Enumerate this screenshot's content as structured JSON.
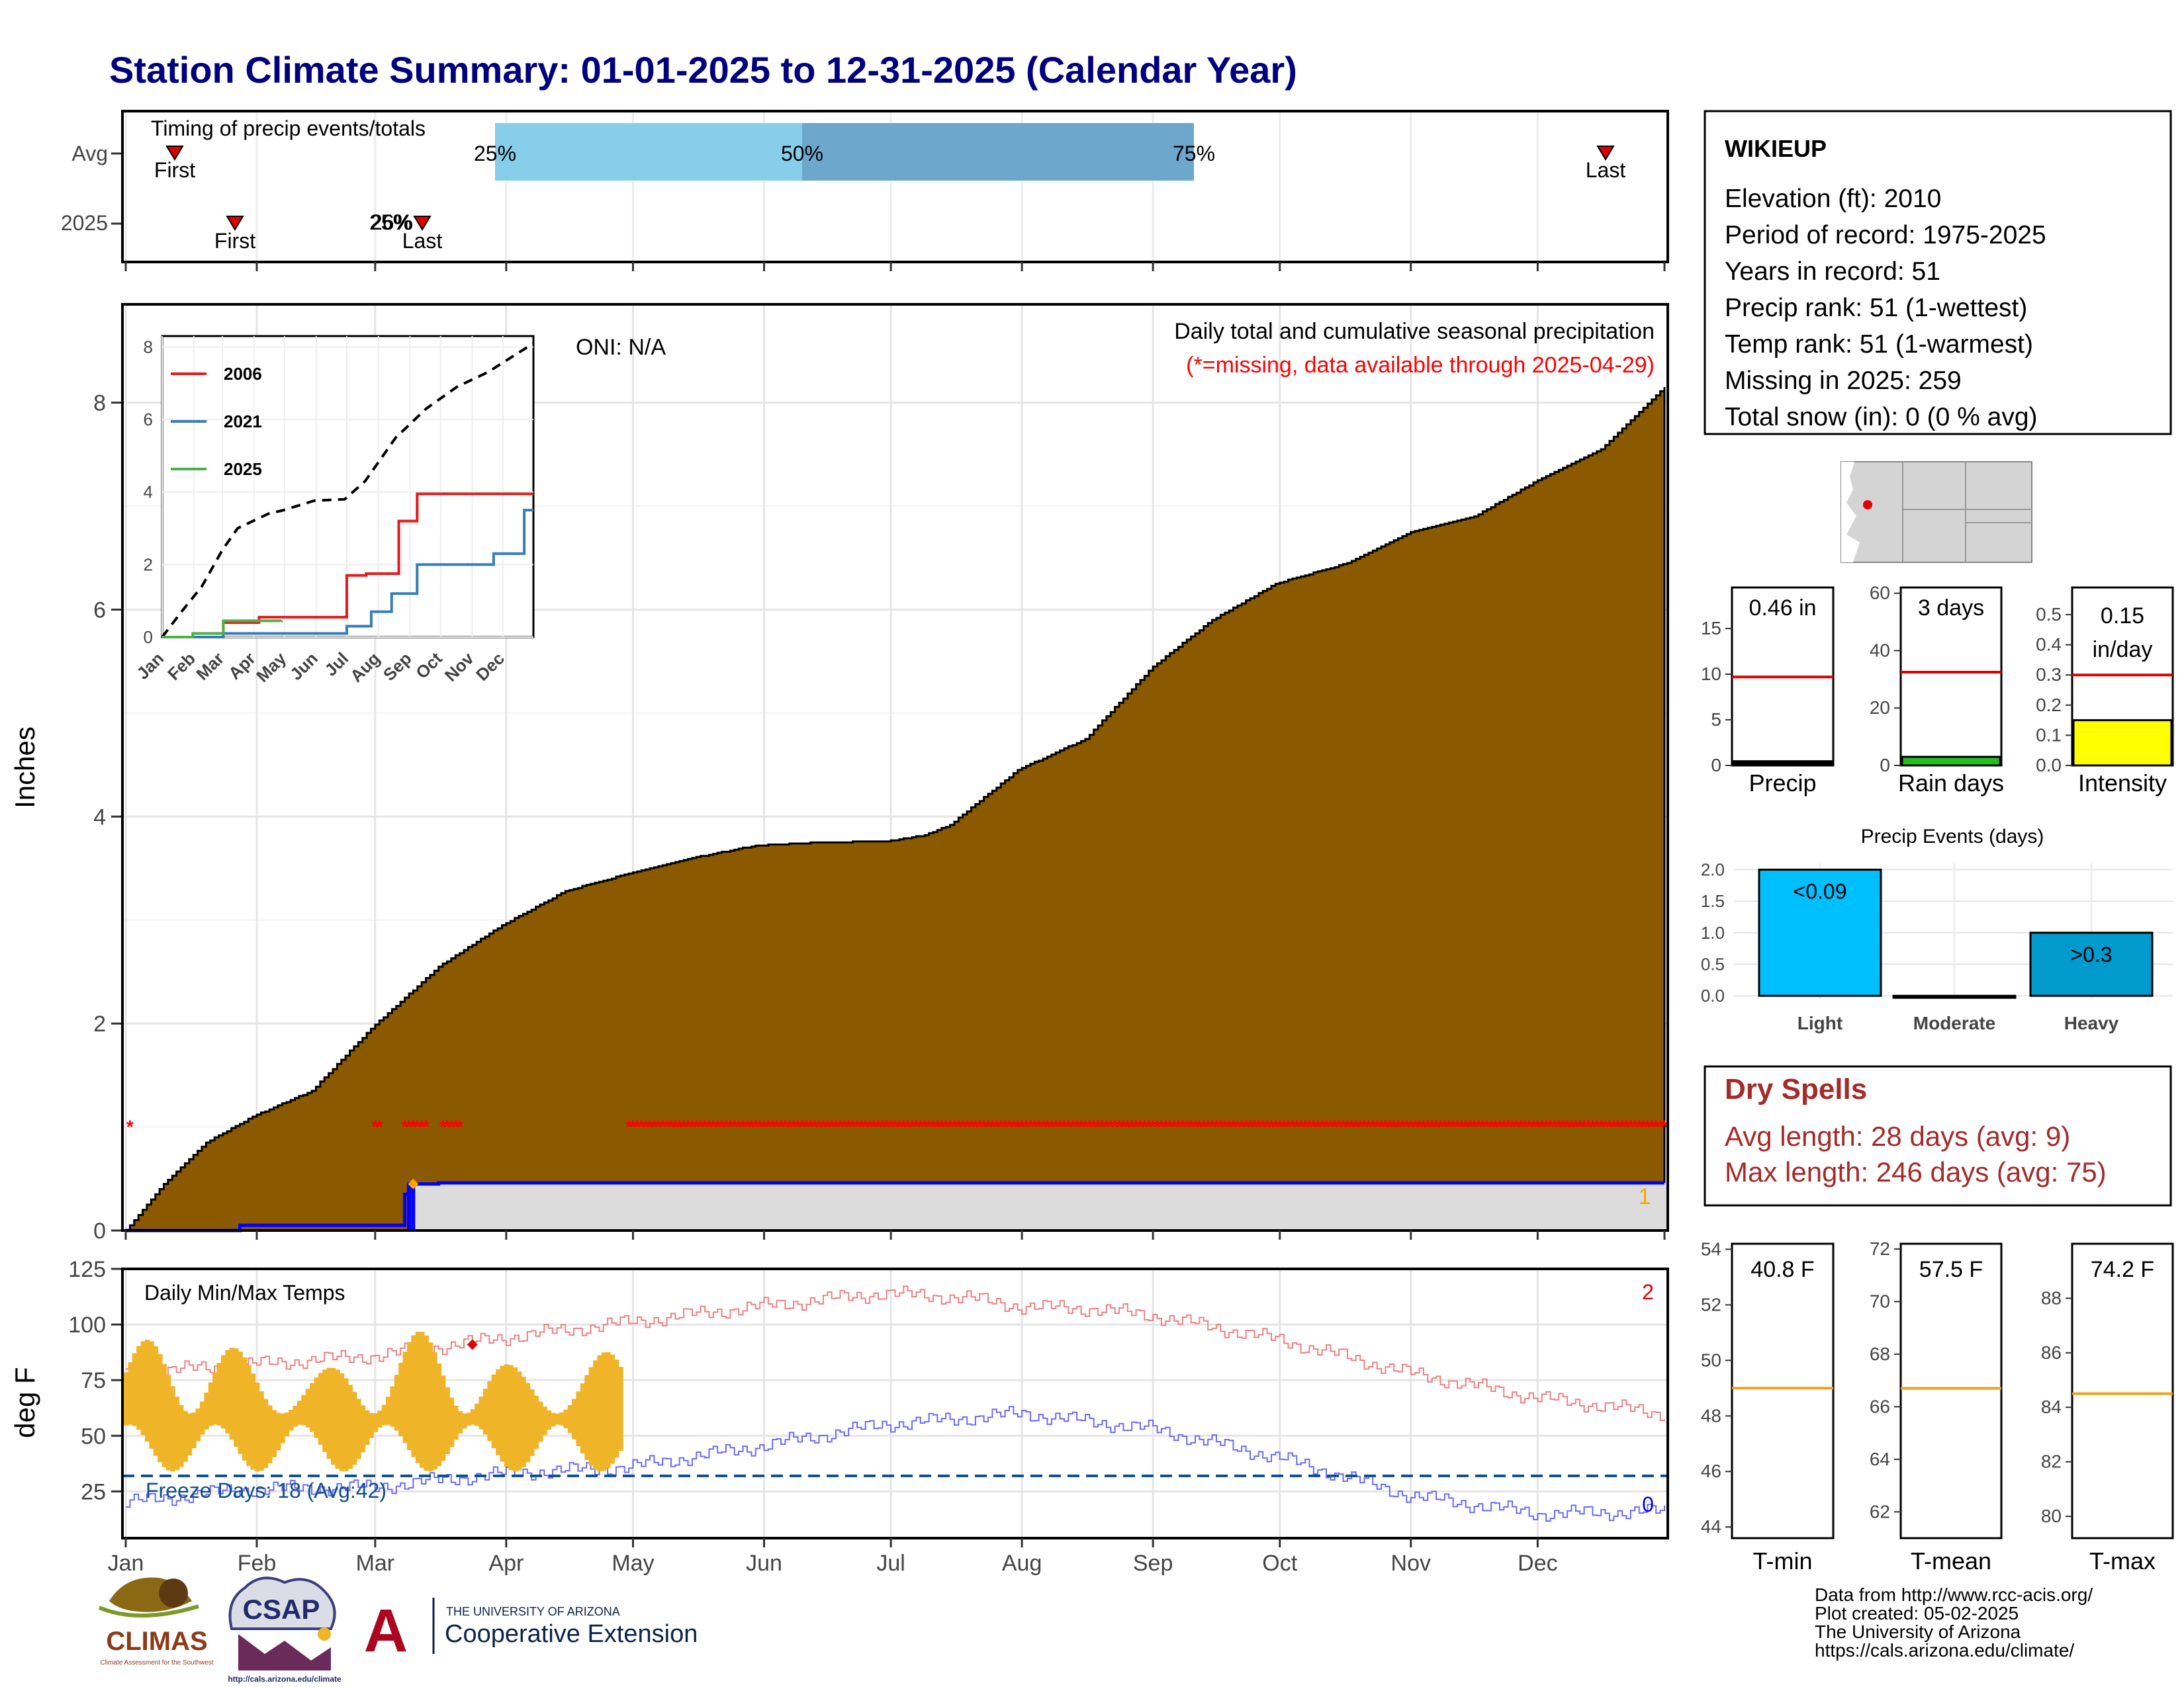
{
  "title": "Station Climate Summary: 01-01-2025 to 12-31-2025 (Calendar Year)",
  "colors": {
    "title": "#00007f",
    "cumulative_fill": "#8b5a00",
    "avg_light": "#87ceeb",
    "avg_dark": "#6ea7cc",
    "missing": "#ff0000",
    "current_line": "#0000ff",
    "temp_bar": "#f0b429",
    "red_line": "#e41a1c",
    "blue_line": "#377eb8",
    "green_line": "#4daf4a",
    "spell_red": "#a52a2a",
    "dark_blue": "#104e8b"
  },
  "timing": {
    "label": "Timing of precip events/totals",
    "row_avg": "Avg",
    "row_year": "2025",
    "first": "First",
    "last": "Last",
    "p25": "25%",
    "p50": "50%",
    "p75": "75%",
    "overlap_2025": "26%"
  },
  "main": {
    "ylabel": "Inches",
    "oni": "ONI: N/A",
    "caption": "Daily total and cumulative seasonal precipitation",
    "missing_note": "(*=missing, data available through 2025-04-29)",
    "count_label": "1"
  },
  "temps": {
    "ylabel": "deg F",
    "title": "Daily Min/Max Temps",
    "freeze": "Freeze Days: 18 (Avg:42)",
    "count_top": "2",
    "count_bottom": "0"
  },
  "station": {
    "name": "WIKIEUP",
    "lines": [
      "Elevation (ft): 2010",
      "Period of record: 1975-2025",
      "Years in record: 51",
      "Precip rank: 51 (1-wettest)",
      "Temp rank: 51 (1-warmest)",
      "Missing in 2025: 259",
      "Total snow (in): 0 (0 % avg)"
    ]
  },
  "dry_spells": {
    "title": "Dry Spells",
    "avg": "Avg length: 28 days (avg: 9)",
    "max": "Max length: 246 days (avg: 75)"
  },
  "footer": [
    "Data from http://www.rcc-acis.org/",
    "Plot created: 05-02-2025",
    "The University of Arizona",
    "https://cals.arizona.edu/climate/"
  ],
  "logos": {
    "climas": "CLIMAS",
    "climas_sub": "Climate Assessment for the Southwest",
    "csap": "CSAP",
    "csap_url": "http://cals.arizona.edu/climate",
    "ua_letter": "A",
    "ua_top": "THE UNIVERSITY OF ARIZONA",
    "ua_bottom": "Cooperative Extension"
  },
  "chart_data": [
    {
      "id": "cumulative_precip",
      "type": "area",
      "x_months": [
        "Jan",
        "Feb",
        "Mar",
        "Apr",
        "May",
        "Jun",
        "Jul",
        "Aug",
        "Sep",
        "Oct",
        "Nov",
        "Dec"
      ],
      "ylabel": "Inches",
      "ylim": [
        0,
        8.95
      ],
      "yticks": [
        0,
        2,
        4,
        6,
        8
      ],
      "grid": true,
      "avg_cumulative": {
        "day": [
          1,
          10,
          20,
          31,
          45,
          59,
          75,
          90,
          105,
          120,
          135,
          150,
          165,
          181,
          190,
          196,
          212,
          228,
          244,
          258,
          273,
          290,
          305,
          320,
          335,
          350,
          365
        ],
        "inches": [
          0,
          0.45,
          0.85,
          1.1,
          1.35,
          1.95,
          2.55,
          2.95,
          3.28,
          3.45,
          3.6,
          3.72,
          3.75,
          3.76,
          3.82,
          3.92,
          4.45,
          4.75,
          5.45,
          5.9,
          6.25,
          6.45,
          6.75,
          6.9,
          7.25,
          7.55,
          8.15
        ]
      },
      "current_2025": {
        "day": [
          1,
          27,
          28,
          66,
          67,
          68,
          69,
          75,
          119,
          365
        ],
        "inches": [
          0,
          0,
          0.05,
          0.05,
          0.35,
          0.45,
          0.45,
          0.46,
          0.46,
          0.46
        ]
      },
      "missing_days": [
        2,
        60,
        61,
        67,
        68,
        69,
        70,
        71,
        72,
        76,
        77,
        78,
        79,
        80,
        120,
        365
      ]
    },
    {
      "id": "inset_cumulative",
      "type": "line",
      "x_months": [
        "Jan",
        "Feb",
        "Mar",
        "Apr",
        "May",
        "Jun",
        "Jul",
        "Aug",
        "Sep",
        "Oct",
        "Nov",
        "Dec"
      ],
      "ylim": [
        0,
        8.3
      ],
      "yticks": [
        0,
        2,
        4,
        6,
        8
      ],
      "legend_position": "top-left",
      "series": [
        {
          "name": "2006",
          "day": [
            1,
            60,
            61,
            95,
            96,
            181,
            182,
            200,
            201,
            232,
            233,
            250,
            251,
            301,
            302,
            365
          ],
          "inches": [
            0,
            0,
            0.4,
            0.4,
            0.55,
            0.55,
            1.7,
            1.7,
            1.75,
            1.75,
            3.2,
            3.2,
            3.95,
            3.95,
            3.95,
            3.95
          ]
        },
        {
          "name": "2021",
          "day": [
            1,
            60,
            61,
            181,
            182,
            205,
            206,
            225,
            226,
            250,
            251,
            325,
            326,
            355,
            356,
            365
          ],
          "inches": [
            0,
            0,
            0.1,
            0.1,
            0.3,
            0.3,
            0.7,
            0.7,
            1.2,
            1.2,
            2.0,
            2.0,
            2.3,
            2.3,
            3.5,
            3.5
          ]
        },
        {
          "name": "2025",
          "day": [
            1,
            30,
            31,
            60,
            61,
            118
          ],
          "inches": [
            0,
            0,
            0.1,
            0.1,
            0.45,
            0.46
          ]
        }
      ],
      "avg_dashed": {
        "day": [
          1,
          20,
          40,
          60,
          75,
          90,
          105,
          120,
          150,
          180,
          200,
          230,
          260,
          290,
          320,
          365
        ],
        "inches": [
          0,
          0.7,
          1.4,
          2.4,
          3.0,
          3.2,
          3.4,
          3.5,
          3.76,
          3.8,
          4.3,
          5.5,
          6.3,
          6.9,
          7.3,
          8.1
        ]
      }
    },
    {
      "id": "temps",
      "type": "bar",
      "ylabel": "deg F",
      "ylim": [
        4,
        125
      ],
      "yticks": [
        25,
        50,
        75,
        100,
        125
      ],
      "freeze_line": 32,
      "normal_max": {
        "day": [
          1,
          30,
          60,
          90,
          120,
          150,
          180,
          200,
          213,
          230,
          244,
          274,
          305,
          335,
          365
        ],
        "temp": [
          78,
          82,
          86,
          94,
          101,
          108,
          114,
          112,
          108,
          107,
          104,
          93,
          78,
          67,
          60
        ]
      },
      "normal_min": {
        "day": [
          1,
          30,
          60,
          90,
          120,
          150,
          180,
          213,
          244,
          274,
          305,
          335,
          365
        ],
        "temp": [
          20,
          26,
          27,
          33,
          36,
          45,
          55,
          60,
          53,
          40,
          23,
          15,
          16
        ]
      },
      "observed_day_range": [
        1,
        118
      ],
      "observed_min_range": [
        34,
        55
      ],
      "observed_max_range": [
        60,
        97
      ],
      "record_high_markers": [
        {
          "day": 83,
          "temp": 91
        }
      ]
    },
    {
      "id": "precip_total",
      "type": "bar",
      "xlabel": "Precip",
      "ylim": [
        0,
        19.5
      ],
      "yticks": [
        0,
        5,
        10,
        15
      ],
      "value": 0.46,
      "average": 9.7,
      "value_label": "0.46 in"
    },
    {
      "id": "rain_days",
      "type": "bar",
      "xlabel": "Rain days",
      "ylim": [
        0,
        62
      ],
      "yticks": [
        0,
        20,
        40,
        60
      ],
      "value": 3,
      "average": 32.5,
      "value_label": "3 days"
    },
    {
      "id": "intensity",
      "type": "bar",
      "xlabel": "Intensity",
      "ylim": [
        0,
        0.59
      ],
      "yticks": [
        0,
        0.1,
        0.2,
        0.3,
        0.4,
        0.5
      ],
      "ytick_labels": [
        "0.0",
        "0.1",
        "0.2",
        "0.3",
        "0.4",
        "0.5"
      ],
      "value": 0.15,
      "average": 0.3,
      "value_label_lines": [
        "0.15",
        "in/day"
      ]
    },
    {
      "id": "precip_events",
      "type": "bar",
      "title": "Precip Events (days)",
      "categories": [
        "Light",
        "Moderate",
        "Heavy"
      ],
      "values": [
        2,
        0,
        1
      ],
      "labels": [
        "<0.09",
        "",
        ">0.3"
      ],
      "ylim": [
        -0.05,
        2.1
      ],
      "yticks": [
        0,
        0.5,
        1,
        1.5,
        2
      ],
      "ytick_labels": [
        "0.0",
        "0.5",
        "1.0",
        "1.5",
        "2.0"
      ]
    },
    {
      "id": "tmin",
      "type": "bar",
      "xlabel": "T-min",
      "ylim": [
        43.6,
        54.2
      ],
      "yticks": [
        44,
        46,
        48,
        50,
        52,
        54
      ],
      "value_label": "40.8 F",
      "average": 49.0
    },
    {
      "id": "tmean",
      "type": "bar",
      "xlabel": "T-mean",
      "ylim": [
        61,
        72.2
      ],
      "yticks": [
        62,
        64,
        66,
        68,
        70,
        72
      ],
      "value_label": "57.5 F",
      "average": 66.7
    },
    {
      "id": "tmax",
      "type": "bar",
      "xlabel": "T-max",
      "ylim": [
        79.2,
        90
      ],
      "yticks": [
        80,
        82,
        84,
        86,
        88
      ],
      "value_label": "74.2 F",
      "average": 84.5
    }
  ]
}
